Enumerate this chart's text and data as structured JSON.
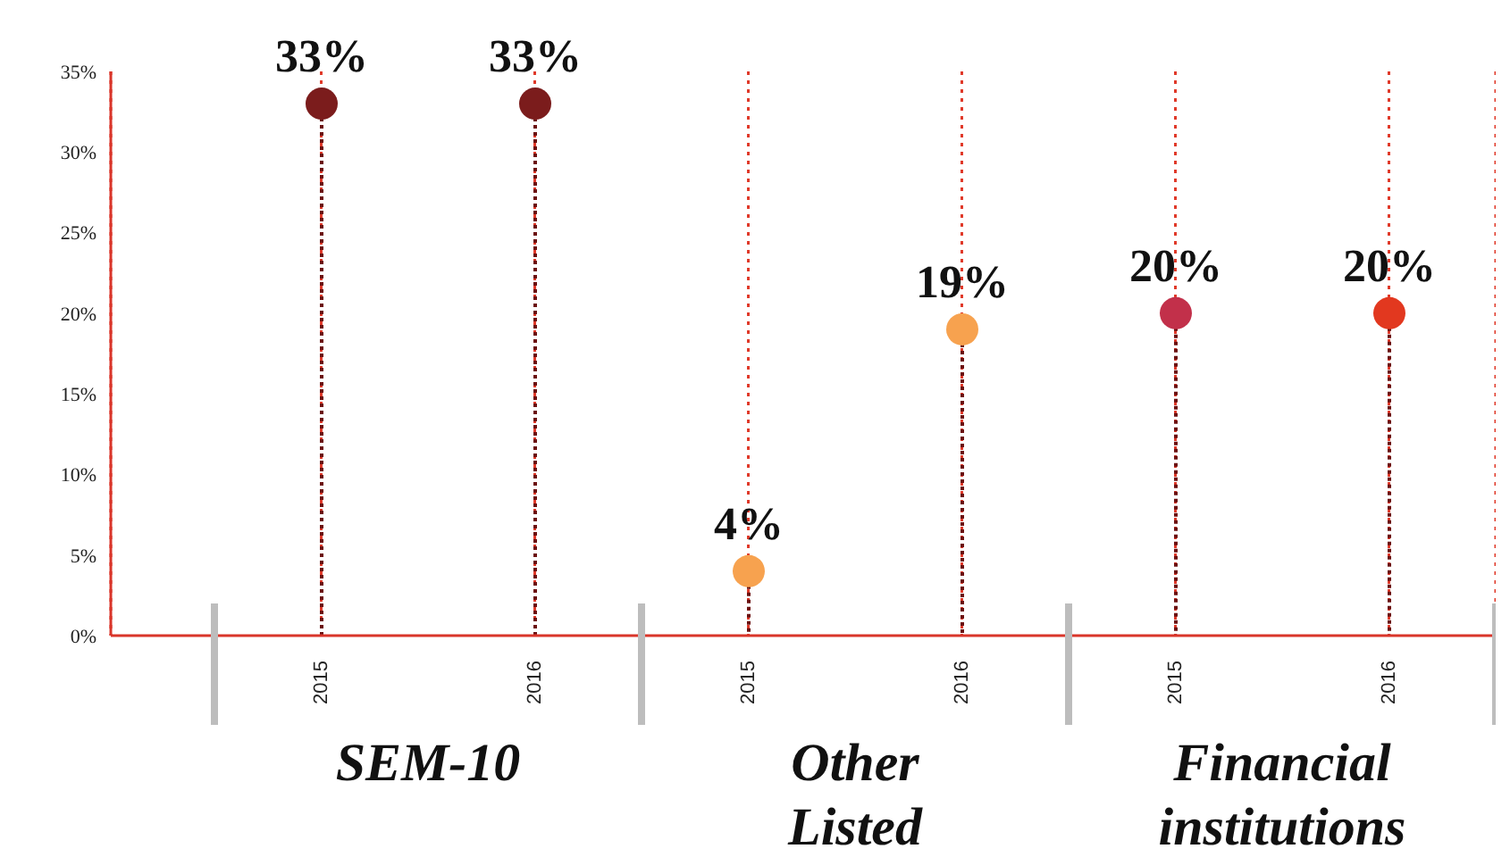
{
  "chart_data": {
    "type": "lollipop",
    "categories": [
      "2015",
      "2016",
      "2015",
      "2016",
      "2015",
      "2016"
    ],
    "values": [
      33,
      33,
      4,
      19,
      20,
      20
    ],
    "colors": [
      "#7b1c1c",
      "#7b1c1c",
      "#f7a24f",
      "#f7a24f",
      "#c2304a",
      "#e2381f"
    ],
    "value_labels": [
      "33%",
      "33%",
      "4%",
      "19%",
      "20%",
      "20%"
    ],
    "ylim": [
      0,
      35
    ],
    "yticks": [
      {
        "value": 0,
        "label": "0%"
      },
      {
        "value": 5,
        "label": "5%"
      },
      {
        "value": 10,
        "label": "10%"
      },
      {
        "value": 15,
        "label": "15%"
      },
      {
        "value": 20,
        "label": "20%"
      },
      {
        "value": 25,
        "label": "25%"
      },
      {
        "value": 30,
        "label": "30%"
      },
      {
        "value": 35,
        "label": "35%"
      }
    ],
    "grid": "x",
    "annotations": [
      "SEM-10",
      "Other Listed",
      "Financial institutions"
    ]
  }
}
